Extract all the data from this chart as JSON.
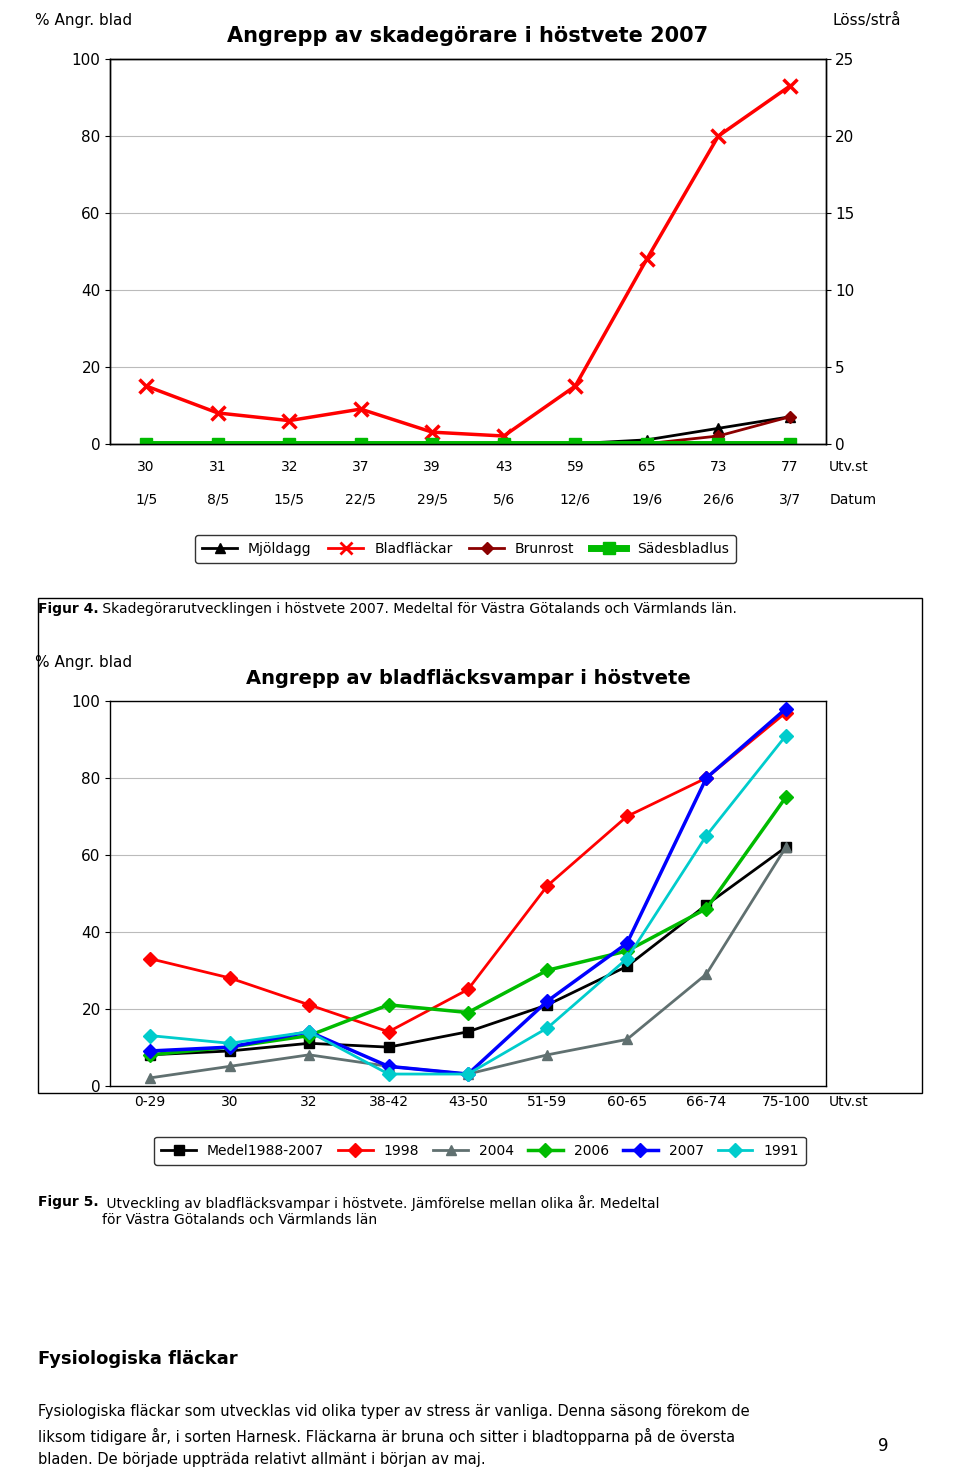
{
  "chart1": {
    "title": "Angrepp av skadegörare i höstvete 2007",
    "ylabel_left": "% Angr. blad",
    "ylabel_right": "Löss/strå",
    "x_labels_row1": [
      "30",
      "31",
      "32",
      "37",
      "39",
      "43",
      "59",
      "65",
      "73",
      "77"
    ],
    "x_labels_row2": [
      "1/5",
      "8/5",
      "15/5",
      "22/5",
      "29/5",
      "5/6",
      "12/6",
      "19/6",
      "26/6",
      "3/7"
    ],
    "datum_label": "Datum",
    "utvst_label": "Utv.st",
    "ylim_left": [
      0,
      100
    ],
    "ylim_right": [
      0,
      25
    ],
    "yticks_left": [
      0,
      20,
      40,
      60,
      80,
      100
    ],
    "yticks_right": [
      0,
      5,
      10,
      15,
      20,
      25
    ],
    "mjoldagg_y": [
      0,
      0,
      0,
      0,
      0,
      0,
      0,
      1,
      4,
      7
    ],
    "bladflackar_y": [
      15,
      8,
      6,
      9,
      3,
      2,
      15,
      48,
      80,
      93
    ],
    "brunrost_y": [
      0,
      0,
      0,
      0,
      0,
      0,
      0,
      0,
      2,
      7
    ],
    "sadesbladlus_y": [
      0,
      0,
      0,
      0,
      0,
      0,
      0,
      0,
      0,
      0
    ],
    "mjoldagg_color": "#000000",
    "bladflackar_color": "#FF0000",
    "brunrost_color": "#8B0000",
    "sadesbladlus_color": "#00BB00"
  },
  "chart2": {
    "title": "Angrepp av bladfläcksvampar i höstvete",
    "ylabel_left": "% Angr. blad",
    "utvst_label": "Utv.st",
    "x_labels": [
      "0-29",
      "30",
      "32",
      "38-42",
      "43-50",
      "51-59",
      "60-65",
      "66-74",
      "75-100"
    ],
    "ylim": [
      0,
      100
    ],
    "yticks": [
      0,
      20,
      40,
      60,
      80,
      100
    ],
    "medel_y": [
      8,
      9,
      11,
      10,
      14,
      21,
      31,
      47,
      62
    ],
    "y1998": [
      33,
      28,
      21,
      14,
      25,
      52,
      70,
      80,
      97
    ],
    "y2004": [
      2,
      5,
      8,
      5,
      3,
      8,
      12,
      29,
      62
    ],
    "y2006": [
      8,
      10,
      13,
      21,
      19,
      30,
      35,
      46,
      75
    ],
    "y2007": [
      9,
      10,
      14,
      5,
      3,
      22,
      37,
      80,
      98
    ],
    "y1991": [
      13,
      11,
      14,
      3,
      3,
      15,
      33,
      65,
      91
    ],
    "medel_color": "#000000",
    "color1998": "#FF0000",
    "color2004": "#607070",
    "color2006": "#00BB00",
    "color2007": "#0000FF",
    "color1991": "#00CCCC"
  },
  "fig4_bold": "Figur 4.",
  "fig4_rest": " Skadegörarutvecklingen i höstvete 2007. Medeltal för Västra Götalands och Värmlands län.",
  "fig5_bold": "Figur 5.",
  "fig5_rest": " Utveckling av bladfläcksvampar i höstvete. Jämförelse mellan olika år. Medeltal\nför Västra Götalands och Värmlands län",
  "body_text_heading": "Fysiologiska fläckar",
  "body_text": "Fysiologiska fläckar som utvecklas vid olika typer av stress är vanliga. Denna säsong förekom de\nliksom tidigare år, i sorten Harnesk. Fläckarna är bruna och sitter i bladtopparna på de översta\nbladen. De började uppträda relativt allmänt i början av maj.",
  "page_number": "9"
}
